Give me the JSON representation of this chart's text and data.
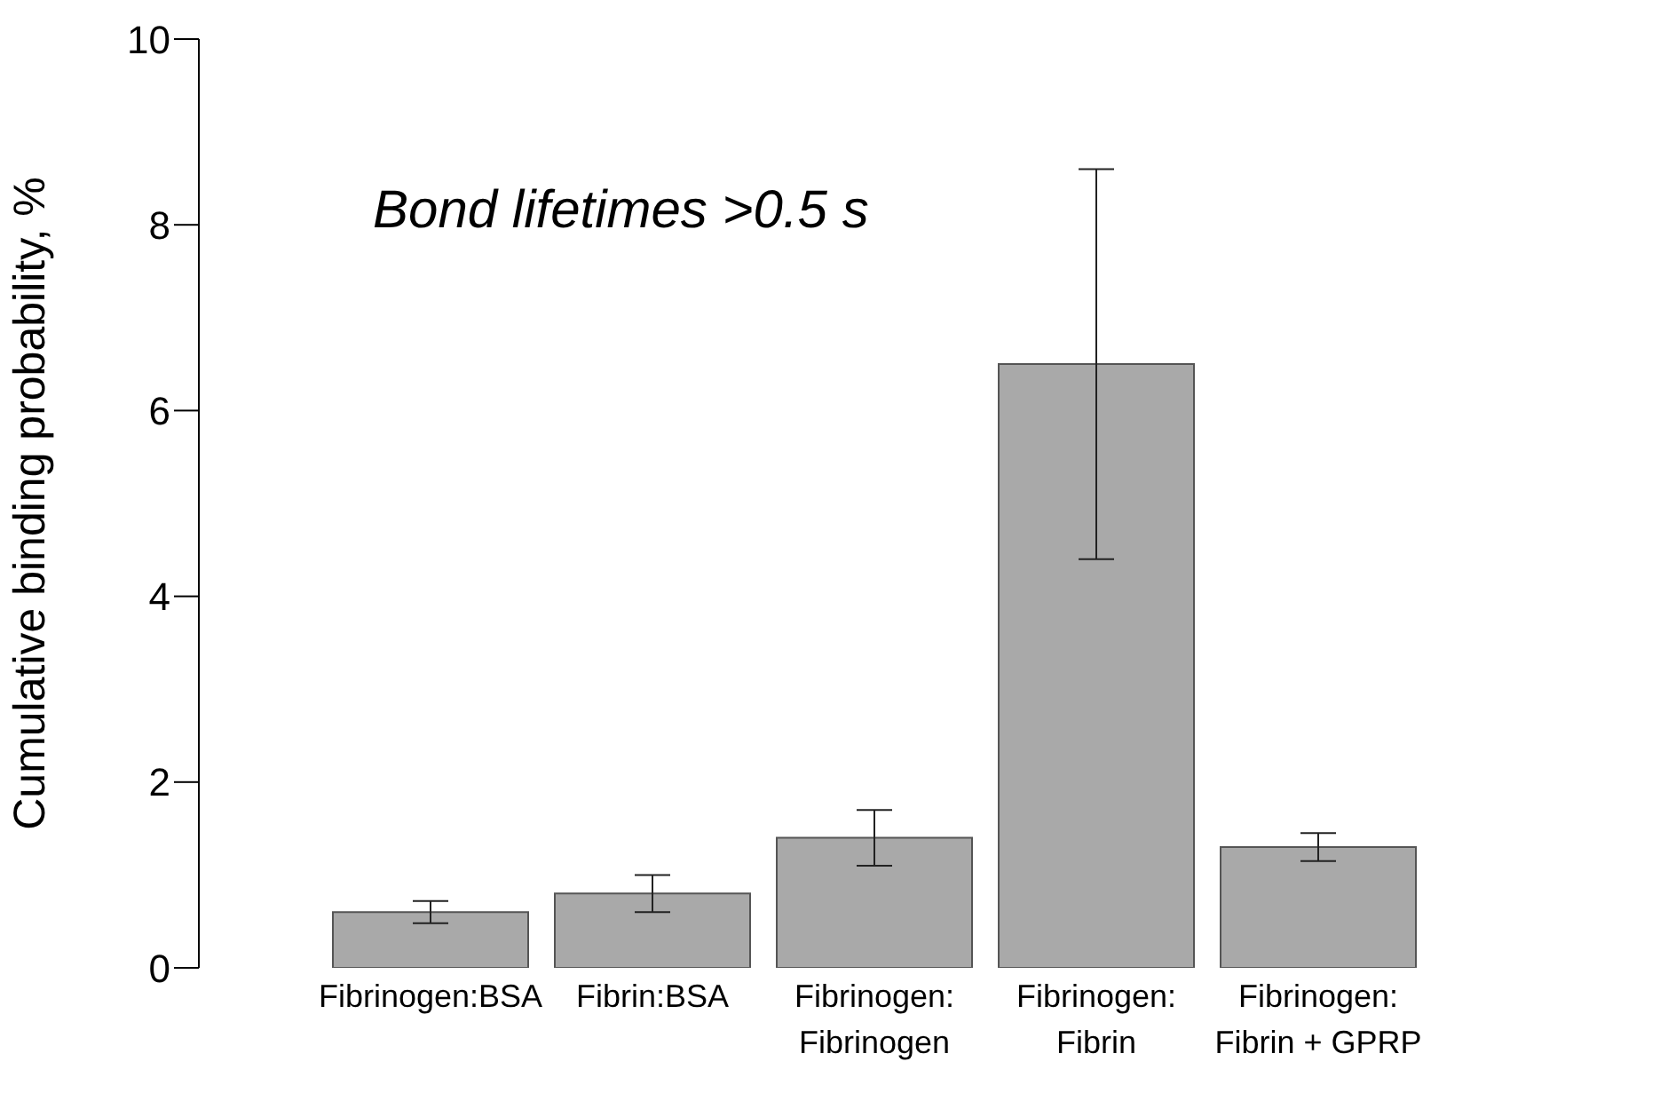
{
  "chart_data": {
    "type": "bar",
    "ylabel": "Cumulative binding probability, %",
    "categories": [
      "Fibrinogen:BSA",
      "Fibrin:BSA",
      "Fibrinogen:\nFibrinogen",
      "Fibrinogen:\nFibrin",
      "Fibrinogen:\nFibrin + GPRP"
    ],
    "values": [
      0.6,
      0.8,
      1.4,
      6.5,
      1.3
    ],
    "errors": [
      0.12,
      0.2,
      0.3,
      2.1,
      0.15
    ],
    "color": "#a9a9a9",
    "ylim": [
      0,
      10
    ],
    "yticks": [
      0,
      2,
      4,
      6,
      8,
      10
    ],
    "annotations": [
      "Bond lifetimes >0.5 s"
    ]
  }
}
